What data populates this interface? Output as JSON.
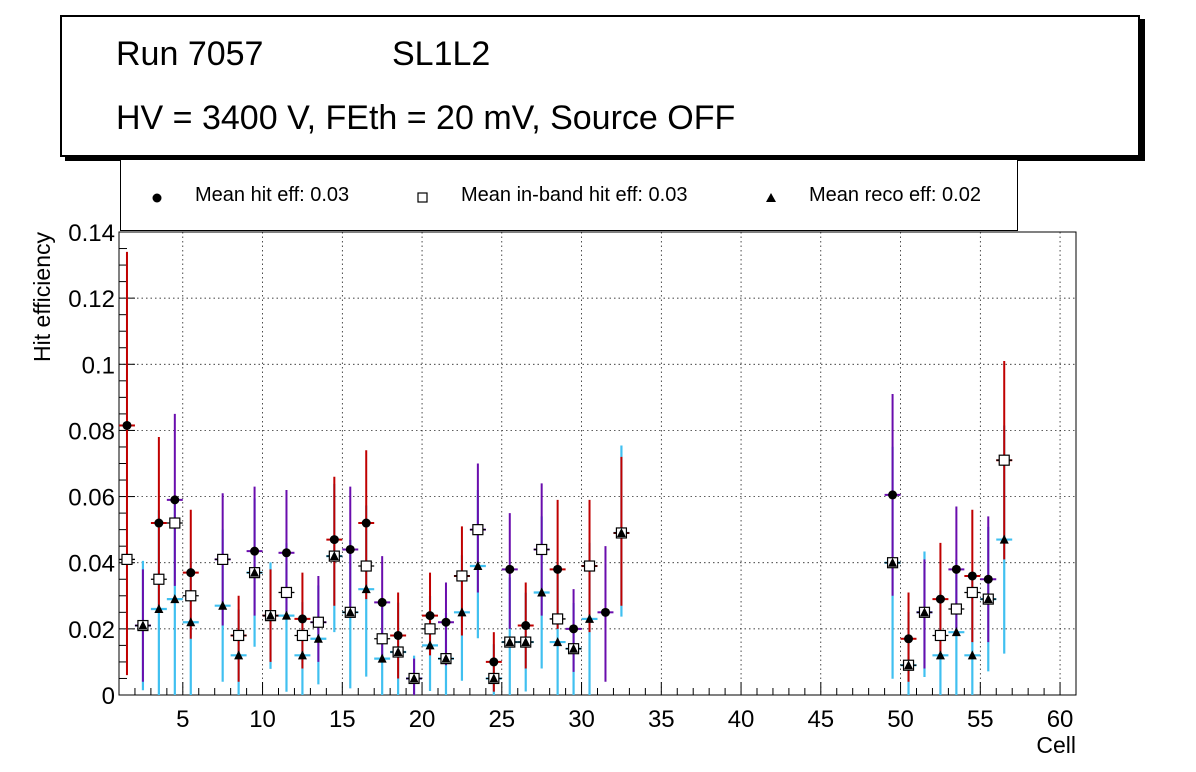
{
  "title": {
    "run": "Run 7057",
    "layer": "SL1L2",
    "conditions": "HV = 3400 V, FEth = 20 mV, Source OFF"
  },
  "legend": [
    {
      "label": "Mean hit  eff: 0.03",
      "marker": "circle"
    },
    {
      "label": "Mean in-band hit eff: 0.03",
      "marker": "open-square"
    },
    {
      "label": "Mean reco eff: 0.02",
      "marker": "triangle"
    }
  ],
  "chart_data": {
    "type": "scatter",
    "xlabel": "Cell",
    "ylabel": "Hit efficiency",
    "xlim": [
      1,
      61
    ],
    "ylim": [
      0,
      0.14
    ],
    "xticks": [
      5,
      10,
      15,
      20,
      25,
      30,
      35,
      40,
      45,
      50,
      55,
      60
    ],
    "yticks": [
      0,
      0.02,
      0.04,
      0.06,
      0.08,
      0.1,
      0.12,
      0.14
    ],
    "ytick_labels": [
      "0",
      "0.02",
      "0.04",
      "0.06",
      "0.08",
      "0.1",
      "0.12",
      "0.14"
    ],
    "grid": true,
    "error_colors": [
      "#c00000",
      "#6a0dad",
      "#40c0f0"
    ],
    "series": [
      {
        "name": "Mean hit  eff: 0.03",
        "marker": "circle",
        "points": [
          [
            1.5,
            0.0815,
            0.006,
            0.134
          ],
          [
            2.5,
            0.021,
            0.004,
            0.038
          ],
          [
            3.5,
            0.052,
            0.026,
            0.078
          ],
          [
            4.5,
            0.059,
            0.033,
            0.085
          ],
          [
            5.5,
            0.037,
            0.017,
            0.056
          ],
          [
            7.5,
            0.041,
            0.021,
            0.061
          ],
          [
            8.5,
            0.018,
            0.004,
            0.03
          ],
          [
            9.5,
            0.0435,
            0.024,
            0.063
          ],
          [
            10.5,
            0.024,
            0.01,
            0.038
          ],
          [
            11.5,
            0.043,
            0.023,
            0.062
          ],
          [
            12.5,
            0.023,
            0.008,
            0.037
          ],
          [
            13.5,
            0.022,
            0.01,
            0.036
          ],
          [
            14.5,
            0.047,
            0.027,
            0.066
          ],
          [
            15.5,
            0.044,
            0.024,
            0.063
          ],
          [
            16.5,
            0.052,
            0.029,
            0.074
          ],
          [
            17.5,
            0.028,
            0.011,
            0.042
          ],
          [
            18.5,
            0.018,
            0.005,
            0.031
          ],
          [
            19.5,
            0.005,
            0.0,
            0.011
          ],
          [
            20.5,
            0.024,
            0.012,
            0.037
          ],
          [
            21.5,
            0.022,
            0.009,
            0.034
          ],
          [
            22.5,
            0.036,
            0.018,
            0.051
          ],
          [
            23.5,
            0.05,
            0.031,
            0.07
          ],
          [
            24.5,
            0.01,
            0.001,
            0.019
          ],
          [
            25.5,
            0.038,
            0.02,
            0.055
          ],
          [
            26.5,
            0.021,
            0.008,
            0.034
          ],
          [
            27.5,
            0.044,
            0.024,
            0.064
          ],
          [
            28.5,
            0.038,
            0.02,
            0.059
          ],
          [
            29.5,
            0.02,
            0.007,
            0.032
          ],
          [
            30.5,
            0.039,
            0.019,
            0.059
          ],
          [
            31.5,
            0.025,
            0.004,
            0.045
          ],
          [
            32.5,
            0.049,
            0.027,
            0.072
          ],
          [
            49.5,
            0.0605,
            0.03,
            0.091
          ],
          [
            50.5,
            0.017,
            0.004,
            0.031
          ],
          [
            51.5,
            0.025,
            0.008,
            0.041
          ],
          [
            52.5,
            0.029,
            0.013,
            0.046
          ],
          [
            53.5,
            0.038,
            0.02,
            0.057
          ],
          [
            54.5,
            0.036,
            0.016,
            0.056
          ],
          [
            55.5,
            0.035,
            0.016,
            0.054
          ],
          [
            56.5,
            0.071,
            0.041,
            0.101
          ]
        ]
      },
      {
        "name": "Mean in-band hit eff: 0.03",
        "marker": "open-square",
        "points": [
          [
            1.5,
            0.041
          ],
          [
            2.5,
            0.021
          ],
          [
            3.5,
            0.035
          ],
          [
            4.5,
            0.052
          ],
          [
            5.5,
            0.03
          ],
          [
            7.5,
            0.041
          ],
          [
            8.5,
            0.018
          ],
          [
            9.5,
            0.037
          ],
          [
            10.5,
            0.024
          ],
          [
            11.5,
            0.031
          ],
          [
            12.5,
            0.018
          ],
          [
            13.5,
            0.022
          ],
          [
            14.5,
            0.042
          ],
          [
            15.5,
            0.025
          ],
          [
            16.5,
            0.039
          ],
          [
            17.5,
            0.017
          ],
          [
            18.5,
            0.013
          ],
          [
            19.5,
            0.005
          ],
          [
            20.5,
            0.02
          ],
          [
            21.5,
            0.011
          ],
          [
            22.5,
            0.036
          ],
          [
            23.5,
            0.05
          ],
          [
            24.5,
            0.005
          ],
          [
            25.5,
            0.016
          ],
          [
            26.5,
            0.016
          ],
          [
            27.5,
            0.044
          ],
          [
            28.5,
            0.023
          ],
          [
            29.5,
            0.014
          ],
          [
            30.5,
            0.039
          ],
          [
            32.5,
            0.049
          ],
          [
            49.5,
            0.04
          ],
          [
            50.5,
            0.009
          ],
          [
            51.5,
            0.025
          ],
          [
            52.5,
            0.018
          ],
          [
            53.5,
            0.026
          ],
          [
            54.5,
            0.031
          ],
          [
            55.5,
            0.029
          ],
          [
            56.5,
            0.071
          ]
        ]
      },
      {
        "name": "Mean reco eff: 0.02",
        "marker": "triangle",
        "points": [
          [
            2.5,
            0.021
          ],
          [
            3.5,
            0.026
          ],
          [
            4.5,
            0.029
          ],
          [
            5.5,
            0.022
          ],
          [
            7.5,
            0.027
          ],
          [
            8.5,
            0.012
          ],
          [
            9.5,
            0.037
          ],
          [
            10.5,
            0.024
          ],
          [
            11.5,
            0.024
          ],
          [
            12.5,
            0.012
          ],
          [
            13.5,
            0.017
          ],
          [
            14.5,
            0.042
          ],
          [
            15.5,
            0.025
          ],
          [
            16.5,
            0.032
          ],
          [
            17.5,
            0.011
          ],
          [
            18.5,
            0.013
          ],
          [
            19.5,
            0.005
          ],
          [
            20.5,
            0.015
          ],
          [
            21.5,
            0.011
          ],
          [
            22.5,
            0.025
          ],
          [
            23.5,
            0.039
          ],
          [
            24.5,
            0.005
          ],
          [
            25.5,
            0.016
          ],
          [
            26.5,
            0.016
          ],
          [
            27.5,
            0.031
          ],
          [
            28.5,
            0.016
          ],
          [
            29.5,
            0.014
          ],
          [
            30.5,
            0.023
          ],
          [
            32.5,
            0.049
          ],
          [
            49.5,
            0.04
          ],
          [
            50.5,
            0.009
          ],
          [
            51.5,
            0.025
          ],
          [
            52.5,
            0.012
          ],
          [
            53.5,
            0.019
          ],
          [
            54.5,
            0.012
          ],
          [
            55.5,
            0.029
          ],
          [
            56.5,
            0.047
          ]
        ]
      }
    ]
  }
}
